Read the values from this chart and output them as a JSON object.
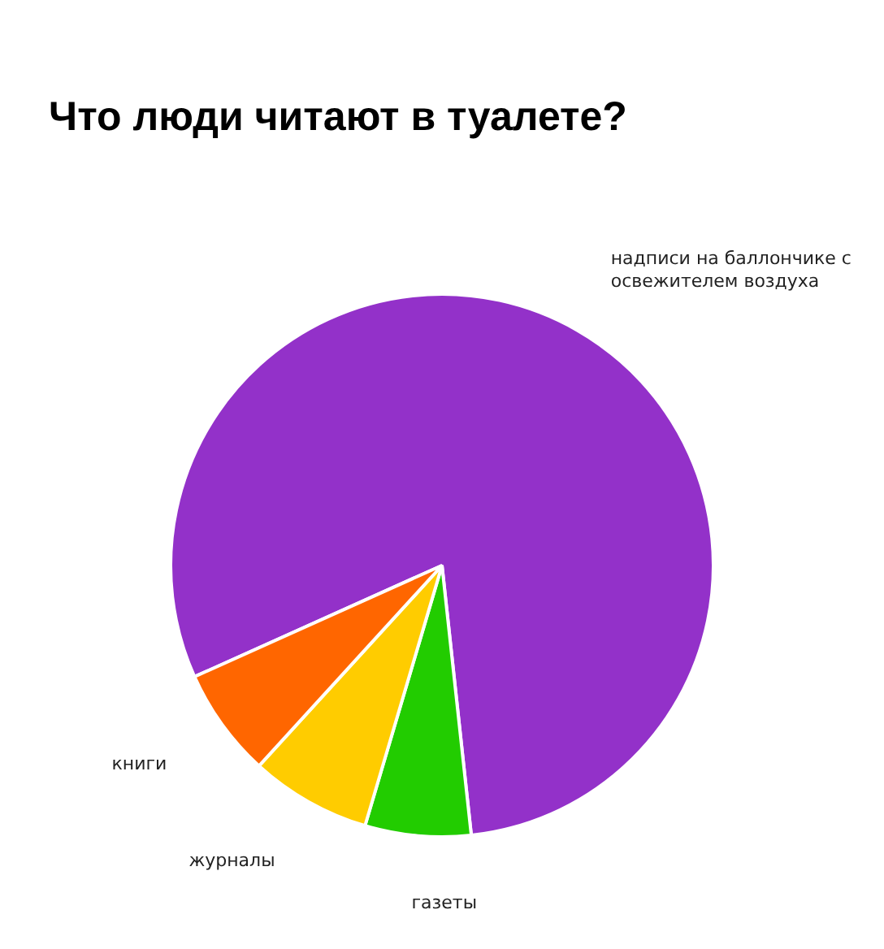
{
  "chart_data": {
    "type": "pie",
    "title": "Что люди читают в туалете?",
    "categories": [
      "надписи на баллончике с освежителем воздуха",
      "газеты",
      "журналы",
      "книги"
    ],
    "values": [
      80,
      6.3,
      7.2,
      6.5
    ],
    "colors": [
      "#9331c9",
      "#22cc00",
      "#ffcc00",
      "#ff6600"
    ],
    "legend": false
  }
}
